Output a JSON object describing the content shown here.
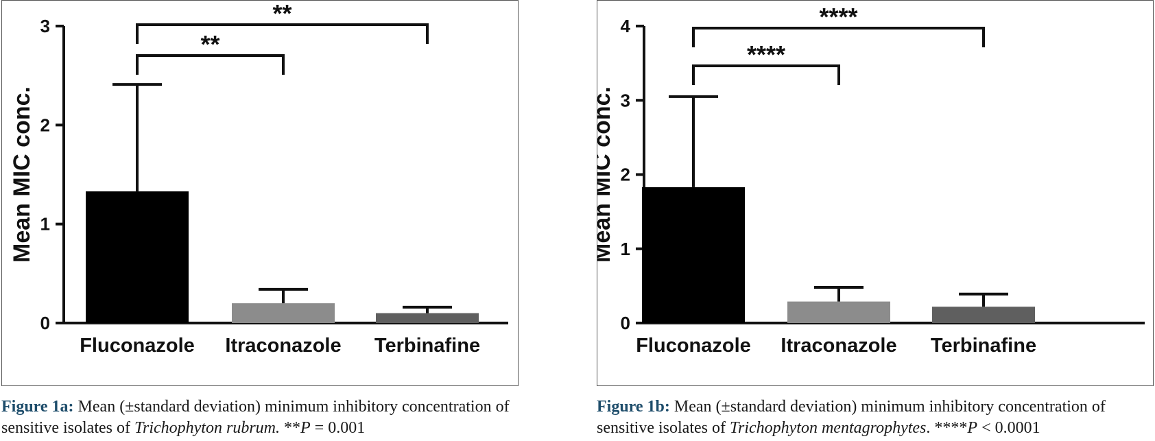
{
  "chart_data": [
    {
      "type": "bar",
      "ylabel": "Mean MIC conc.",
      "ylim": [
        0,
        3
      ],
      "yticks": [
        "0",
        "1",
        "2",
        "3"
      ],
      "categories": [
        "Fluconazole",
        "Itraconazole",
        "Terbinafine"
      ],
      "values": [
        1.33,
        0.2,
        0.1
      ],
      "errors": [
        1.08,
        0.14,
        0.06
      ],
      "colors": [
        "#000000",
        "#8c8c8c",
        "#5f5f5f"
      ],
      "significance": [
        {
          "from": 0,
          "to": 1,
          "label": "**"
        },
        {
          "from": 0,
          "to": 2,
          "label": "**"
        }
      ],
      "grid": false
    },
    {
      "type": "bar",
      "ylabel": "Mean MIC conc.",
      "ylim": [
        0,
        4
      ],
      "yticks": [
        "0",
        "1",
        "2",
        "3",
        "4"
      ],
      "categories": [
        "Fluconazole",
        "Itraconazole",
        "Terbinafine"
      ],
      "values": [
        1.83,
        0.29,
        0.22
      ],
      "errors": [
        1.22,
        0.19,
        0.17
      ],
      "colors": [
        "#000000",
        "#8c8c8c",
        "#5f5f5f"
      ],
      "significance": [
        {
          "from": 0,
          "to": 1,
          "label": "****"
        },
        {
          "from": 0,
          "to": 2,
          "label": "****"
        }
      ],
      "grid": false
    }
  ],
  "captions": {
    "a": {
      "label": "Figure 1a:",
      "text": " Mean (±standard deviation) minimum inhibitory concentration of sensitive isolates of ",
      "organism": "Trichophyton rubrum.",
      "stat_stars": " **",
      "stat_p": "P",
      "stat_value": " = 0.001"
    },
    "b": {
      "label": "Figure 1b:",
      "text": " Mean (±standard deviation) minimum inhibitory concentration of sensitive isolates of ",
      "organism": "Trichophyton mentagrophytes",
      "stat_stars": ". ****",
      "stat_p": "P",
      "stat_value": " < 0.0001"
    }
  }
}
